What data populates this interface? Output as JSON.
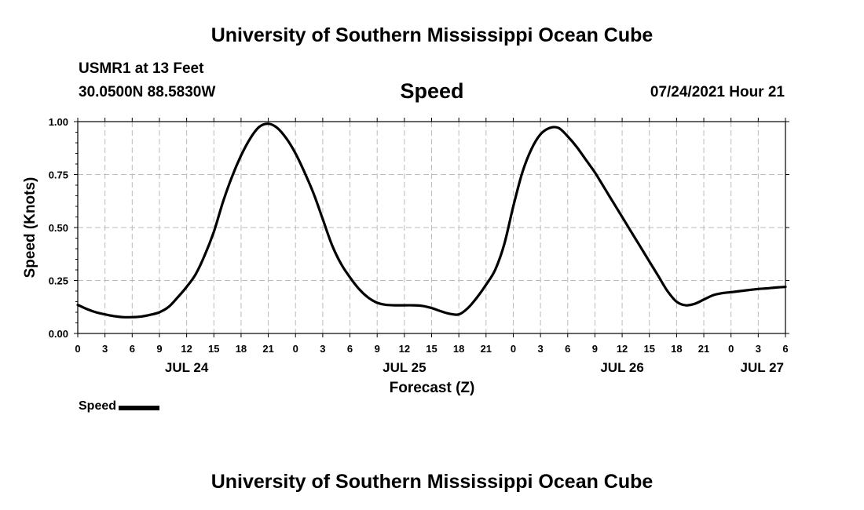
{
  "header": {
    "title": "University of Southern Mississippi Ocean Cube",
    "station": "USMR1 at 13 Feet",
    "coords": "30.0500N  88.5830W",
    "variable": "Speed",
    "datetime": "07/24/2021 Hour 21"
  },
  "footer": {
    "title": "University of Southern Mississippi Ocean Cube"
  },
  "legend": {
    "label": "Speed",
    "color": "#000000"
  },
  "chart_data": {
    "type": "line",
    "ylabel": "Speed (Knots)",
    "xlabel": "Forecast (Z)",
    "ylim": [
      0,
      1
    ],
    "yticks": [
      "0.00",
      "0.25",
      "0.50",
      "0.75",
      "1.00"
    ],
    "xlim_hours": [
      0,
      78
    ],
    "xticks": [
      "0",
      "3",
      "6",
      "9",
      "12",
      "15",
      "18",
      "21",
      "0",
      "3",
      "6",
      "9",
      "12",
      "15",
      "18",
      "21",
      "0",
      "3",
      "6",
      "9",
      "12",
      "15",
      "18",
      "21",
      "0",
      "3",
      "6"
    ],
    "day_labels": [
      {
        "label": "JUL 24",
        "hour": 12
      },
      {
        "label": "JUL 25",
        "hour": 36
      },
      {
        "label": "JUL 26",
        "hour": 60
      },
      {
        "label": "JUL 27",
        "hour": 78
      }
    ],
    "grid": true,
    "series": [
      {
        "name": "Speed",
        "color": "#000000",
        "x": [
          0,
          1,
          2,
          3,
          4,
          5,
          6,
          7,
          8,
          9,
          10,
          11,
          12,
          13,
          14,
          15,
          16,
          17,
          18,
          19,
          20,
          21,
          22,
          23,
          24,
          25,
          26,
          27,
          28,
          29,
          30,
          31,
          32,
          33,
          34,
          35,
          36,
          37,
          38,
          39,
          40,
          41,
          42,
          43,
          44,
          45,
          46,
          47,
          48,
          49,
          50,
          51,
          52,
          53,
          54,
          55,
          56,
          57,
          58,
          59,
          60,
          61,
          62,
          63,
          64,
          65,
          66,
          67,
          68,
          69,
          70,
          71,
          72,
          73,
          74,
          75,
          76,
          77,
          78
        ],
        "y": [
          0.135,
          0.115,
          0.1,
          0.09,
          0.082,
          0.077,
          0.077,
          0.08,
          0.088,
          0.1,
          0.125,
          0.17,
          0.22,
          0.28,
          0.37,
          0.48,
          0.62,
          0.74,
          0.84,
          0.92,
          0.975,
          0.99,
          0.97,
          0.92,
          0.85,
          0.76,
          0.66,
          0.54,
          0.42,
          0.33,
          0.265,
          0.21,
          0.17,
          0.145,
          0.135,
          0.133,
          0.133,
          0.133,
          0.13,
          0.12,
          0.105,
          0.093,
          0.09,
          0.12,
          0.17,
          0.23,
          0.3,
          0.42,
          0.6,
          0.76,
          0.87,
          0.94,
          0.97,
          0.97,
          0.93,
          0.88,
          0.82,
          0.76,
          0.69,
          0.62,
          0.55,
          0.48,
          0.41,
          0.34,
          0.27,
          0.2,
          0.15,
          0.133,
          0.14,
          0.16,
          0.18,
          0.19,
          0.195,
          0.2,
          0.205,
          0.21,
          0.213,
          0.217,
          0.22
        ]
      }
    ]
  }
}
